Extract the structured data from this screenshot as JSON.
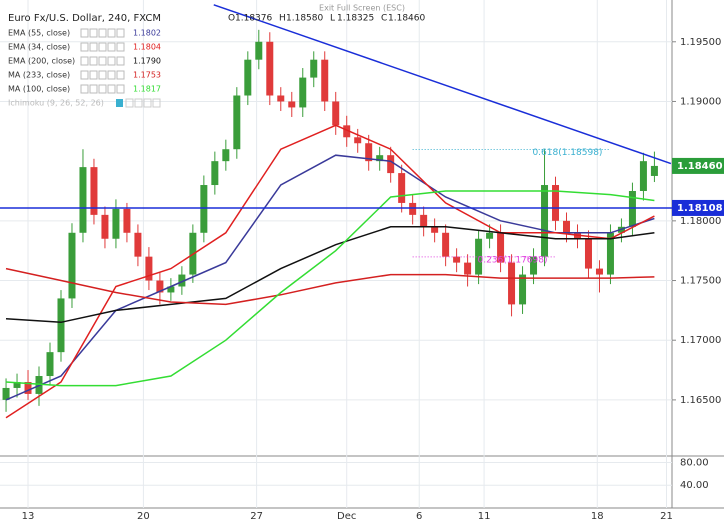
{
  "chart_data": {
    "type": "candlestick",
    "title": "Euro Fx/U.S. Dollar, 240, FXCM",
    "banner": "Exit Full Screen (ESC)",
    "ohlc": [
      {
        "label": "O",
        "value": "1.18376"
      },
      {
        "label": "H",
        "value": "1.18580"
      },
      {
        "label": "L",
        "value": "1.18325"
      },
      {
        "label": "C",
        "value": "1.18460"
      }
    ],
    "up_color": "#3a9d3a",
    "down_color": "#e03a3a",
    "open": [
      1.165,
      1.166,
      1.1665,
      1.1655,
      1.167,
      1.169,
      1.1735,
      1.179,
      1.1845,
      1.1805,
      1.1785,
      1.181,
      1.179,
      1.177,
      1.175,
      1.174,
      1.1745,
      1.1755,
      1.179,
      1.183,
      1.185,
      1.186,
      1.1905,
      1.1935,
      1.195,
      1.1905,
      1.19,
      1.1895,
      1.192,
      1.1935,
      1.19,
      1.188,
      1.187,
      1.1865,
      1.185,
      1.1855,
      1.184,
      1.1815,
      1.1805,
      1.1795,
      1.179,
      1.177,
      1.1765,
      1.1755,
      1.1785,
      1.179,
      1.1765,
      1.173,
      1.1755,
      1.177,
      1.183,
      1.18,
      1.179,
      1.1785,
      1.176,
      1.1755,
      1.179,
      1.1795,
      1.1825,
      1.18376
    ],
    "high": [
      1.1668,
      1.1672,
      1.1675,
      1.1678,
      1.1698,
      1.1742,
      1.1798,
      1.186,
      1.1852,
      1.1812,
      1.1818,
      1.1815,
      1.1797,
      1.1778,
      1.1757,
      1.1752,
      1.1762,
      1.1797,
      1.1838,
      1.1858,
      1.1868,
      1.1912,
      1.1942,
      1.196,
      1.1958,
      1.1912,
      1.1908,
      1.1928,
      1.1942,
      1.1942,
      1.1908,
      1.1888,
      1.1877,
      1.1872,
      1.1862,
      1.1862,
      1.1847,
      1.1822,
      1.1812,
      1.1802,
      1.1797,
      1.1777,
      1.1772,
      1.1792,
      1.1797,
      1.1797,
      1.1772,
      1.1762,
      1.1777,
      1.186,
      1.1837,
      1.1807,
      1.1797,
      1.1792,
      1.1767,
      1.1797,
      1.1802,
      1.1832,
      1.1857,
      1.1858
    ],
    "low": [
      1.164,
      1.1652,
      1.165,
      1.1645,
      1.1662,
      1.1682,
      1.1727,
      1.1782,
      1.1797,
      1.1777,
      1.1777,
      1.1782,
      1.1762,
      1.1742,
      1.173,
      1.1733,
      1.1738,
      1.1748,
      1.1782,
      1.1822,
      1.1842,
      1.1852,
      1.1897,
      1.1927,
      1.1897,
      1.1892,
      1.1887,
      1.1887,
      1.1912,
      1.1892,
      1.1872,
      1.1862,
      1.1857,
      1.1842,
      1.1842,
      1.1832,
      1.1807,
      1.1797,
      1.1787,
      1.1782,
      1.1762,
      1.1757,
      1.1745,
      1.1747,
      1.1777,
      1.1757,
      1.172,
      1.1722,
      1.1747,
      1.1762,
      1.1792,
      1.1782,
      1.1777,
      1.1752,
      1.174,
      1.1747,
      1.1782,
      1.1787,
      1.1817,
      1.18325
    ],
    "close": [
      1.166,
      1.1665,
      1.1655,
      1.167,
      1.169,
      1.1735,
      1.179,
      1.1845,
      1.1805,
      1.1785,
      1.181,
      1.179,
      1.177,
      1.175,
      1.174,
      1.1745,
      1.1755,
      1.179,
      1.183,
      1.185,
      1.186,
      1.1905,
      1.1935,
      1.195,
      1.1905,
      1.19,
      1.1895,
      1.192,
      1.1935,
      1.19,
      1.188,
      1.187,
      1.1865,
      1.185,
      1.1855,
      1.184,
      1.1815,
      1.1805,
      1.1795,
      1.179,
      1.177,
      1.1765,
      1.1755,
      1.1785,
      1.179,
      1.1765,
      1.173,
      1.1755,
      1.177,
      1.183,
      1.18,
      1.179,
      1.1785,
      1.176,
      1.1755,
      1.179,
      1.1795,
      1.1825,
      1.185,
      1.1846
    ],
    "series": [
      {
        "name": "EMA (55, close)",
        "color": "#3a3a9a",
        "value_label": "1.1802",
        "x": [
          0,
          5,
          10,
          15,
          20,
          25,
          30,
          35,
          40,
          45,
          50,
          55,
          59
        ],
        "values": [
          1.165,
          1.167,
          1.1725,
          1.1745,
          1.1765,
          1.183,
          1.1855,
          1.185,
          1.182,
          1.18,
          1.179,
          1.179,
          1.1802
        ]
      },
      {
        "name": "EMA (34, close)",
        "color": "#e02020",
        "value_label": "1.1804",
        "x": [
          0,
          5,
          10,
          15,
          20,
          25,
          30,
          35,
          40,
          45,
          50,
          55,
          59
        ],
        "values": [
          1.1635,
          1.1665,
          1.1745,
          1.176,
          1.179,
          1.186,
          1.188,
          1.186,
          1.1815,
          1.179,
          1.179,
          1.1785,
          1.1804
        ]
      },
      {
        "name": "EMA (200, close)",
        "color": "#111111",
        "value_label": "1.1790",
        "x": [
          0,
          5,
          10,
          15,
          20,
          25,
          30,
          35,
          40,
          45,
          50,
          55,
          59
        ],
        "values": [
          1.1718,
          1.1715,
          1.1725,
          1.173,
          1.1735,
          1.176,
          1.178,
          1.1795,
          1.1795,
          1.179,
          1.1785,
          1.1785,
          1.179
        ]
      },
      {
        "name": "MA (233, close)",
        "color": "#d42020",
        "value_label": "1.1753",
        "x": [
          0,
          5,
          10,
          15,
          20,
          25,
          30,
          35,
          40,
          45,
          50,
          55,
          59
        ],
        "values": [
          1.176,
          1.175,
          1.174,
          1.1732,
          1.173,
          1.1738,
          1.1748,
          1.1755,
          1.1755,
          1.1752,
          1.1752,
          1.1752,
          1.1753
        ]
      },
      {
        "name": "MA (100, close)",
        "color": "#33dd33",
        "value_label": "1.1817",
        "x": [
          0,
          5,
          10,
          15,
          20,
          25,
          30,
          35,
          40,
          45,
          50,
          55,
          59
        ],
        "values": [
          1.1665,
          1.1662,
          1.1662,
          1.167,
          1.17,
          1.174,
          1.1775,
          1.182,
          1.1825,
          1.1825,
          1.1825,
          1.1822,
          1.1817
        ]
      }
    ],
    "ichimoku": "Ichimoku (9, 26, 52, 26)",
    "trendline": {
      "color": "#1a2ed8",
      "x": [
        18.9,
        60.5
      ],
      "y": [
        1.1981,
        1.1848
      ]
    },
    "price_labels": [
      {
        "value": 1.1846,
        "label": "1.18460",
        "color": "#2a9d3a"
      },
      {
        "value": 1.18108,
        "label": "1.18108",
        "color": "#1a2ed8"
      }
    ],
    "fib": [
      {
        "label": "0.618(1.18598)",
        "value": 1.18598,
        "color": "#3ab0d0",
        "x": [
          37,
          55
        ]
      },
      {
        "label": "0.236(1.17698)",
        "value": 1.17698,
        "color": "#e040e0",
        "x": [
          37,
          50
        ]
      }
    ],
    "xlim": [
      -0.55,
      60.6
    ],
    "xticks": [
      {
        "value": 2,
        "label": "13"
      },
      {
        "value": 12.5,
        "label": "20"
      },
      {
        "value": 22.8,
        "label": "27"
      },
      {
        "value": 31,
        "label": "Dec"
      },
      {
        "value": 37.6,
        "label": "6"
      },
      {
        "value": 43.5,
        "label": "11"
      },
      {
        "value": 53.8,
        "label": "18"
      },
      {
        "value": 60.1,
        "label": "21"
      }
    ],
    "ylim": [
      1.1603,
      1.1985
    ],
    "yticks": [
      {
        "value": 1.195,
        "label": "1.19500"
      },
      {
        "value": 1.19,
        "label": "1.19000"
      },
      {
        "value": 1.18,
        "label": "1.18000"
      },
      {
        "value": 1.175,
        "label": "1.17500"
      },
      {
        "value": 1.17,
        "label": "1.17000"
      },
      {
        "value": 1.165,
        "label": "1.16500"
      }
    ],
    "lower_ylim": [
      0,
      91.4
    ],
    "lower_yticks": [
      {
        "value": 80,
        "label": "80.00"
      },
      {
        "value": 40,
        "label": "40.00"
      }
    ],
    "grid": true
  }
}
